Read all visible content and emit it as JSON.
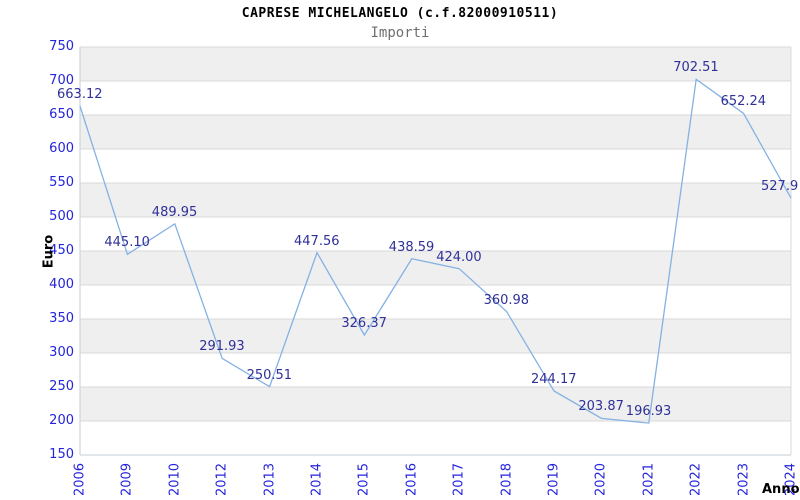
{
  "header": {
    "title": "CAPRESE MICHELANGELO (c.f.82000910511)",
    "subtitle": "Importi"
  },
  "chart_data": {
    "type": "line",
    "title": "CAPRESE MICHELANGELO (c.f.82000910511)",
    "subtitle": "Importi",
    "xlabel": "Anno",
    "ylabel": "Euro",
    "categories": [
      "2006",
      "2009",
      "2010",
      "2012",
      "2013",
      "2014",
      "2015",
      "2016",
      "2017",
      "2018",
      "2019",
      "2020",
      "2021",
      "2022",
      "2023",
      "2024"
    ],
    "values": [
      663.12,
      445.1,
      489.95,
      291.93,
      250.51,
      447.56,
      326.37,
      438.59,
      424.0,
      360.98,
      244.17,
      203.87,
      196.93,
      702.51,
      652.24,
      527.9
    ],
    "value_labels": [
      "663.12",
      "445.10",
      "489.95",
      "291.93",
      "250.51",
      "447.56",
      "326.37",
      "438.59",
      "424.00",
      "360.98",
      "244.17",
      "203.87",
      "196.93",
      "702.51",
      "652.24",
      "527.9"
    ],
    "ylim": [
      150,
      750
    ],
    "ytick_step": 50,
    "yticks": [
      150,
      200,
      250,
      300,
      350,
      400,
      450,
      500,
      550,
      600,
      650,
      700,
      750
    ],
    "grid": "horizontal gridlines with alternating gray/white bands every 50",
    "legend": "none",
    "colors": {
      "line": "#85b1e3",
      "tick_label": "#2424dd",
      "data_label": "#303099",
      "band": "#efefef",
      "gridline": "#dadada",
      "axis": "#c2cdd6",
      "subtitle": "#707070"
    }
  }
}
